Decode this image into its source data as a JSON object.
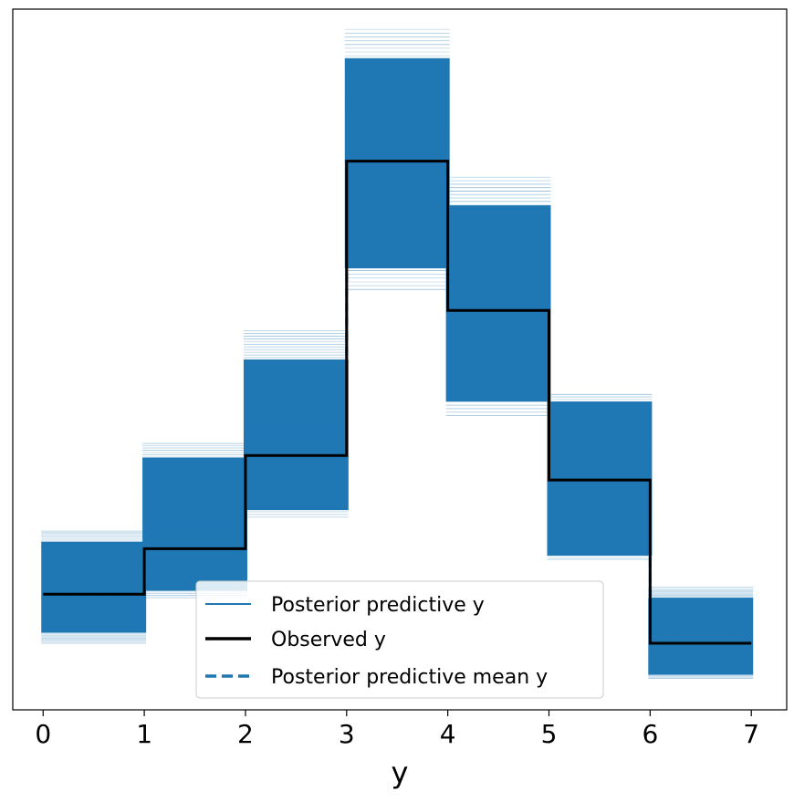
{
  "chart_data": {
    "type": "line",
    "title": "",
    "xlabel": "y",
    "ylabel": "",
    "xlim": [
      -0.3,
      7.35
    ],
    "ylim": [
      0,
      1
    ],
    "x_ticks": [
      "0",
      "1",
      "2",
      "3",
      "4",
      "5",
      "6",
      "7"
    ],
    "y_ticks_shown": false,
    "grid": false,
    "legend": {
      "placement": "lower-center",
      "entries": [
        {
          "label": "Posterior predictive y",
          "style": "thin-solid",
          "color": "#1f77b4"
        },
        {
          "label": "Observed y",
          "style": "solid",
          "color": "#000000"
        },
        {
          "label": "Posterior predictive mean y",
          "style": "dashed",
          "color": "#1f77b4"
        }
      ]
    },
    "series": [
      {
        "name": "Observed y",
        "type": "step",
        "color": "#000000",
        "bin_edges": [
          0,
          1,
          2,
          3,
          4,
          5,
          6,
          7
        ],
        "values": [
          0.165,
          0.23,
          0.363,
          0.783,
          0.57,
          0.328,
          0.095
        ]
      },
      {
        "name": "Posterior predictive y",
        "type": "step-band",
        "color": "#1f77b4",
        "bin_edges": [
          0,
          1,
          2,
          3,
          4,
          5,
          6,
          7
        ],
        "band_min": [
          0.095,
          0.16,
          0.275,
          0.6,
          0.42,
          0.215,
          0.045
        ],
        "band_max": [
          0.255,
          0.38,
          0.541,
          0.971,
          0.76,
          0.45,
          0.175
        ],
        "dense_min": [
          0.11,
          0.17,
          0.285,
          0.63,
          0.44,
          0.22,
          0.05
        ],
        "dense_max": [
          0.24,
          0.36,
          0.5,
          0.93,
          0.72,
          0.44,
          0.16
        ]
      },
      {
        "name": "Posterior predictive mean y",
        "type": "step",
        "color": "#1f77b4",
        "bin_edges": [
          0,
          1,
          2,
          3,
          4,
          5,
          6,
          7
        ],
        "values": [
          0.168,
          0.265,
          0.4,
          0.78,
          0.58,
          0.33,
          0.1
        ]
      }
    ]
  }
}
